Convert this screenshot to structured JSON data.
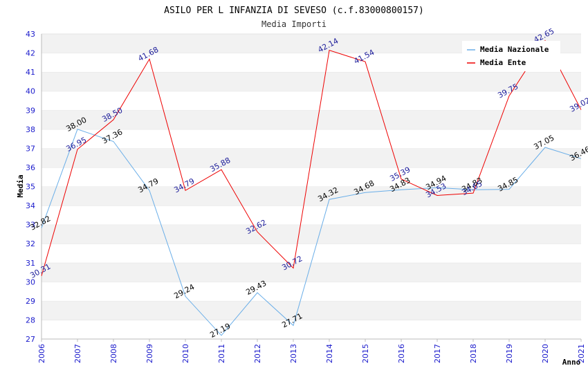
{
  "chart_data": {
    "type": "line",
    "title": "ASILO PER L INFANZIA DI SEVESO (c.f.83000800157)",
    "subtitle": "Media Importi",
    "xlabel": "Anno",
    "ylabel": "Media",
    "ylim": [
      27,
      43
    ],
    "y_ticks": [
      "27",
      "28",
      "29",
      "30",
      "31",
      "32",
      "33",
      "34",
      "35",
      "36",
      "37",
      "38",
      "39",
      "40",
      "41",
      "42",
      "43"
    ],
    "x": [
      "2006",
      "2007",
      "2008",
      "2009",
      "2010",
      "2011",
      "2012",
      "2013",
      "2014",
      "2015",
      "2016",
      "2017",
      "2018",
      "2019",
      "2020",
      "2021"
    ],
    "grid": "horizontal bands",
    "legend_position": "top-right",
    "series": [
      {
        "name": "Media Nazionale",
        "color": "#6aaee8",
        "values": [
          32.82,
          38.0,
          37.36,
          34.79,
          29.24,
          27.19,
          29.43,
          27.71,
          34.32,
          34.68,
          34.83,
          34.94,
          34.83,
          34.85,
          37.05,
          36.46
        ],
        "labels": [
          "32.82",
          "38.00",
          "37.36",
          "34.79",
          "29.24",
          "27.19",
          "29.43",
          "27.71",
          "34.32",
          "34.68",
          "34.83",
          "34.94",
          "34.83",
          "34.85",
          "37.05",
          "36.46"
        ]
      },
      {
        "name": "Media Ente",
        "color": "#ee0000",
        "values": [
          30.31,
          36.95,
          38.5,
          41.68,
          34.79,
          35.88,
          32.62,
          30.72,
          42.14,
          41.54,
          35.39,
          34.53,
          34.65,
          39.75,
          42.65,
          39.02
        ],
        "labels": [
          "30.31",
          "36.95",
          "38.50",
          "41.68",
          "34.79",
          "35.88",
          "32.62",
          "30.72",
          "42.14",
          "41.54",
          "35.39",
          "34.53",
          "34.65",
          "39.75",
          "42.65",
          "39.02"
        ]
      }
    ]
  }
}
